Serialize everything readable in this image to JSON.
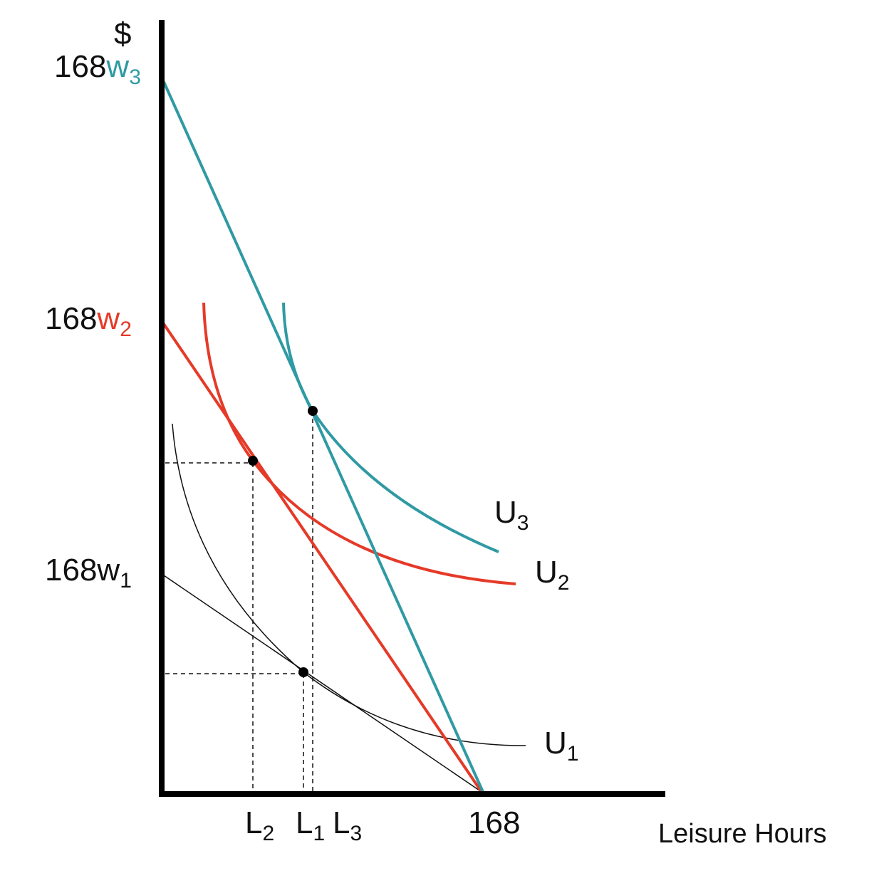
{
  "colors": {
    "teal": "#2f9aa3",
    "red": "#e53a28",
    "black": "#000000"
  },
  "y_axis": {
    "unit": "$",
    "ticks": [
      {
        "base": "168",
        "w": "w",
        "sub": "3",
        "color": "teal"
      },
      {
        "base": "168",
        "w": "w",
        "sub": "2",
        "color": "red"
      },
      {
        "base": "168",
        "w": "w",
        "sub": "1",
        "color": "black"
      }
    ]
  },
  "x_axis": {
    "title": "Leisure Hours",
    "end_label": "168",
    "ticks": [
      {
        "letter": "L",
        "sub": "2",
        "color": "red"
      },
      {
        "letter": "L",
        "sub": "1",
        "color": "black"
      },
      {
        "letter": "L",
        "sub": "3",
        "color": "teal"
      }
    ]
  },
  "curves": [
    {
      "letter": "U",
      "sub": "3",
      "color": "teal"
    },
    {
      "letter": "U",
      "sub": "2",
      "color": "red"
    },
    {
      "letter": "U",
      "sub": "1",
      "color": "black"
    }
  ]
}
